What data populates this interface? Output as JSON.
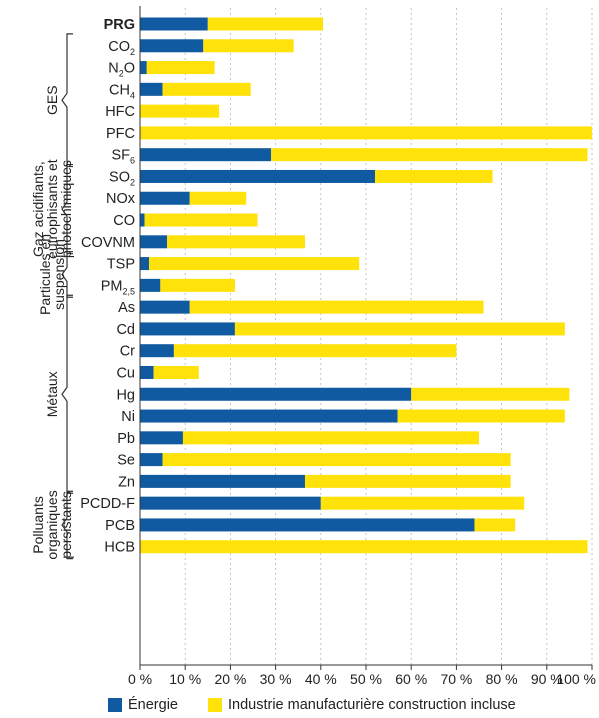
{
  "colors": {
    "energie": "#0f5aa0",
    "industrie": "#ffe20a",
    "axis": "#333333",
    "text": "#222222"
  },
  "legend": {
    "energie": "Énergie",
    "industrie": "Industrie manufacturière construction incluse"
  },
  "chart_data": {
    "type": "bar",
    "orientation": "horizontal",
    "stacked": true,
    "xlim": [
      0,
      100
    ],
    "ticks": [
      "0 %",
      "10 %",
      "20 %",
      "30 %",
      "40 %",
      "50 %",
      "60 %",
      "70 %",
      "80 %",
      "90 %",
      "100 %"
    ],
    "series": [
      {
        "name": "Énergie",
        "color": "#0f5aa0"
      },
      {
        "name": "Industrie manufacturière construction incluse",
        "color": "#ffe20a"
      }
    ],
    "rows": [
      {
        "label": "PRG",
        "sub": "",
        "bold": true,
        "values": [
          15,
          25.5
        ]
      },
      {
        "label": "CO",
        "sub": "2",
        "values": [
          14,
          20
        ]
      },
      {
        "label": "N",
        "sub": "2",
        "tail": "O",
        "values": [
          1.5,
          15
        ]
      },
      {
        "label": "CH",
        "sub": "4",
        "values": [
          5,
          19.5
        ]
      },
      {
        "label": "HFC",
        "sub": "",
        "values": [
          0,
          17.5
        ]
      },
      {
        "label": "PFC",
        "sub": "",
        "values": [
          0,
          100
        ]
      },
      {
        "label": "SF",
        "sub": "6",
        "values": [
          29,
          70
        ]
      },
      {
        "label": "SO",
        "sub": "2",
        "values": [
          52,
          26
        ]
      },
      {
        "label": "NOx",
        "sub": "",
        "values": [
          11,
          12.5
        ]
      },
      {
        "label": "CO",
        "sub": "",
        "values": [
          1,
          25
        ]
      },
      {
        "label": "COVNM",
        "sub": "",
        "values": [
          6,
          30.5
        ]
      },
      {
        "label": "TSP",
        "sub": "",
        "values": [
          2,
          46.5
        ]
      },
      {
        "label": "PM",
        "sub": "2,5",
        "values": [
          4.5,
          16.5
        ]
      },
      {
        "label": "As",
        "sub": "",
        "values": [
          11,
          65
        ]
      },
      {
        "label": "Cd",
        "sub": "",
        "values": [
          21,
          73
        ]
      },
      {
        "label": "Cr",
        "sub": "",
        "values": [
          7.5,
          62.5
        ]
      },
      {
        "label": "Cu",
        "sub": "",
        "values": [
          3,
          10
        ]
      },
      {
        "label": "Hg",
        "sub": "",
        "values": [
          60,
          35
        ]
      },
      {
        "label": "Ni",
        "sub": "",
        "values": [
          57,
          37
        ]
      },
      {
        "label": "Pb",
        "sub": "",
        "values": [
          9.5,
          65.5
        ]
      },
      {
        "label": "Se",
        "sub": "",
        "values": [
          5,
          77
        ]
      },
      {
        "label": "Zn",
        "sub": "",
        "values": [
          36.5,
          45.5
        ]
      },
      {
        "label": "PCDD-F",
        "sub": "",
        "values": [
          40,
          45
        ]
      },
      {
        "label": "PCB",
        "sub": "",
        "values": [
          74,
          9
        ]
      },
      {
        "label": "HCB",
        "sub": "",
        "values": [
          0,
          99
        ]
      }
    ],
    "groups": [
      {
        "label": "GES",
        "lines": [
          "GES"
        ],
        "rows": [
          1,
          6
        ]
      },
      {
        "label": "Gaz acidifiants, eutrophisants et photochimiques",
        "lines": [
          "Gaz acidifiants,",
          "eutrophisants et",
          "photochimiques"
        ],
        "rows": [
          7,
          10
        ]
      },
      {
        "label": "Particules en suspension",
        "lines": [
          "Particules en",
          "suspension"
        ],
        "rows": [
          11,
          12
        ]
      },
      {
        "label": "Métaux",
        "lines": [
          "Métaux"
        ],
        "rows": [
          13,
          21
        ]
      },
      {
        "label": "Polluants organiques persistants",
        "lines": [
          "Polluants",
          "organiques",
          "persistants"
        ],
        "rows": [
          22,
          24
        ]
      }
    ]
  }
}
